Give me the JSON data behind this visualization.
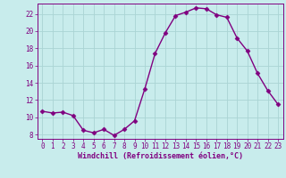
{
  "x": [
    0,
    1,
    2,
    3,
    4,
    5,
    6,
    7,
    8,
    9,
    10,
    11,
    12,
    13,
    14,
    15,
    16,
    17,
    18,
    19,
    20,
    21,
    22,
    23
  ],
  "y": [
    10.7,
    10.5,
    10.6,
    10.2,
    8.5,
    8.2,
    8.6,
    7.9,
    8.6,
    9.6,
    13.3,
    17.4,
    19.8,
    21.8,
    22.2,
    22.7,
    22.6,
    21.9,
    21.6,
    19.2,
    17.7,
    15.1,
    13.1,
    11.5
  ],
  "line_color": "#800080",
  "marker": "D",
  "marker_size": 2.5,
  "bg_color": "#c8ecec",
  "grid_color": "#aad4d4",
  "xlabel": "Windchill (Refroidissement éolien,°C)",
  "xlabel_color": "#800080",
  "tick_color": "#800080",
  "spine_color": "#800080",
  "ylim": [
    7.5,
    23.2
  ],
  "xlim": [
    -0.5,
    23.5
  ],
  "yticks": [
    8,
    10,
    12,
    14,
    16,
    18,
    20,
    22
  ],
  "xticks": [
    0,
    1,
    2,
    3,
    4,
    5,
    6,
    7,
    8,
    9,
    10,
    11,
    12,
    13,
    14,
    15,
    16,
    17,
    18,
    19,
    20,
    21,
    22,
    23
  ],
  "tick_fontsize": 5.5,
  "xlabel_fontsize": 6.0,
  "linewidth": 1.0
}
